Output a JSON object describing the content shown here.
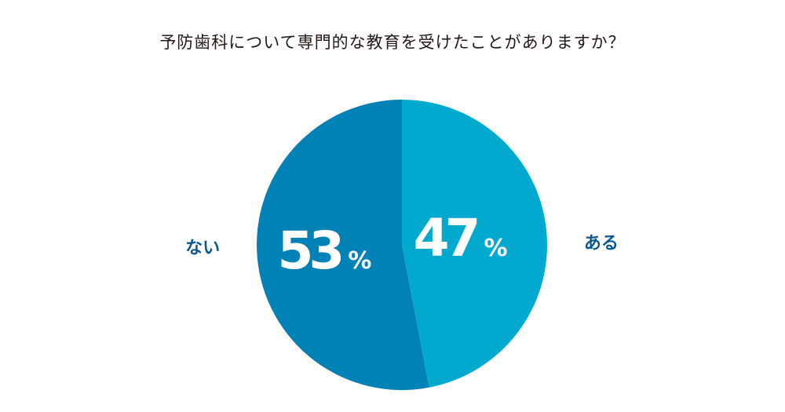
{
  "chart_data": {
    "type": "pie",
    "title": "予防歯科について専門的な教育を受けたことがありますか？",
    "slices": [
      {
        "label": "ある",
        "value": 47,
        "display": "47",
        "unit": "%",
        "color": "#00a9cd"
      },
      {
        "label": "ない",
        "value": 53,
        "display": "53",
        "unit": "%",
        "color": "#0082b6"
      }
    ],
    "start_angle": "12 o'clock",
    "direction": "clockwise",
    "legend": "none (labels outside slices)"
  }
}
